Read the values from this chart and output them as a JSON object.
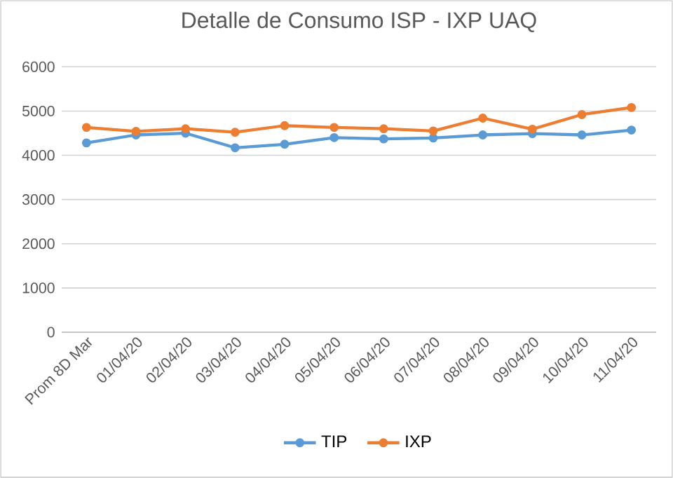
{
  "chart_data": {
    "type": "line",
    "title": "Detalle de Consumo ISP - IXP UAQ",
    "categories": [
      "Prom 8D Mar",
      "01/04/20",
      "02/04/20",
      "03/04/20",
      "04/04/20",
      "05/04/20",
      "06/04/20",
      "07/04/20",
      "08/04/20",
      "09/04/20",
      "10/04/20",
      "11/04/20"
    ],
    "series": [
      {
        "name": "TIP",
        "color": "#5b9bd5",
        "values": [
          4280,
          4460,
          4500,
          4170,
          4250,
          4400,
          4370,
          4390,
          4460,
          4490,
          4460,
          4570
        ]
      },
      {
        "name": "IXP",
        "color": "#ed7d31",
        "values": [
          4630,
          4540,
          4600,
          4520,
          4670,
          4630,
          4600,
          4550,
          4840,
          4590,
          4920,
          5080
        ]
      }
    ],
    "ylim": [
      0,
      6000
    ],
    "yticks": [
      0,
      1000,
      2000,
      3000,
      4000,
      5000,
      6000
    ],
    "grid": "y",
    "legend": "bottom",
    "marker": "circle",
    "line_style": "solid"
  }
}
